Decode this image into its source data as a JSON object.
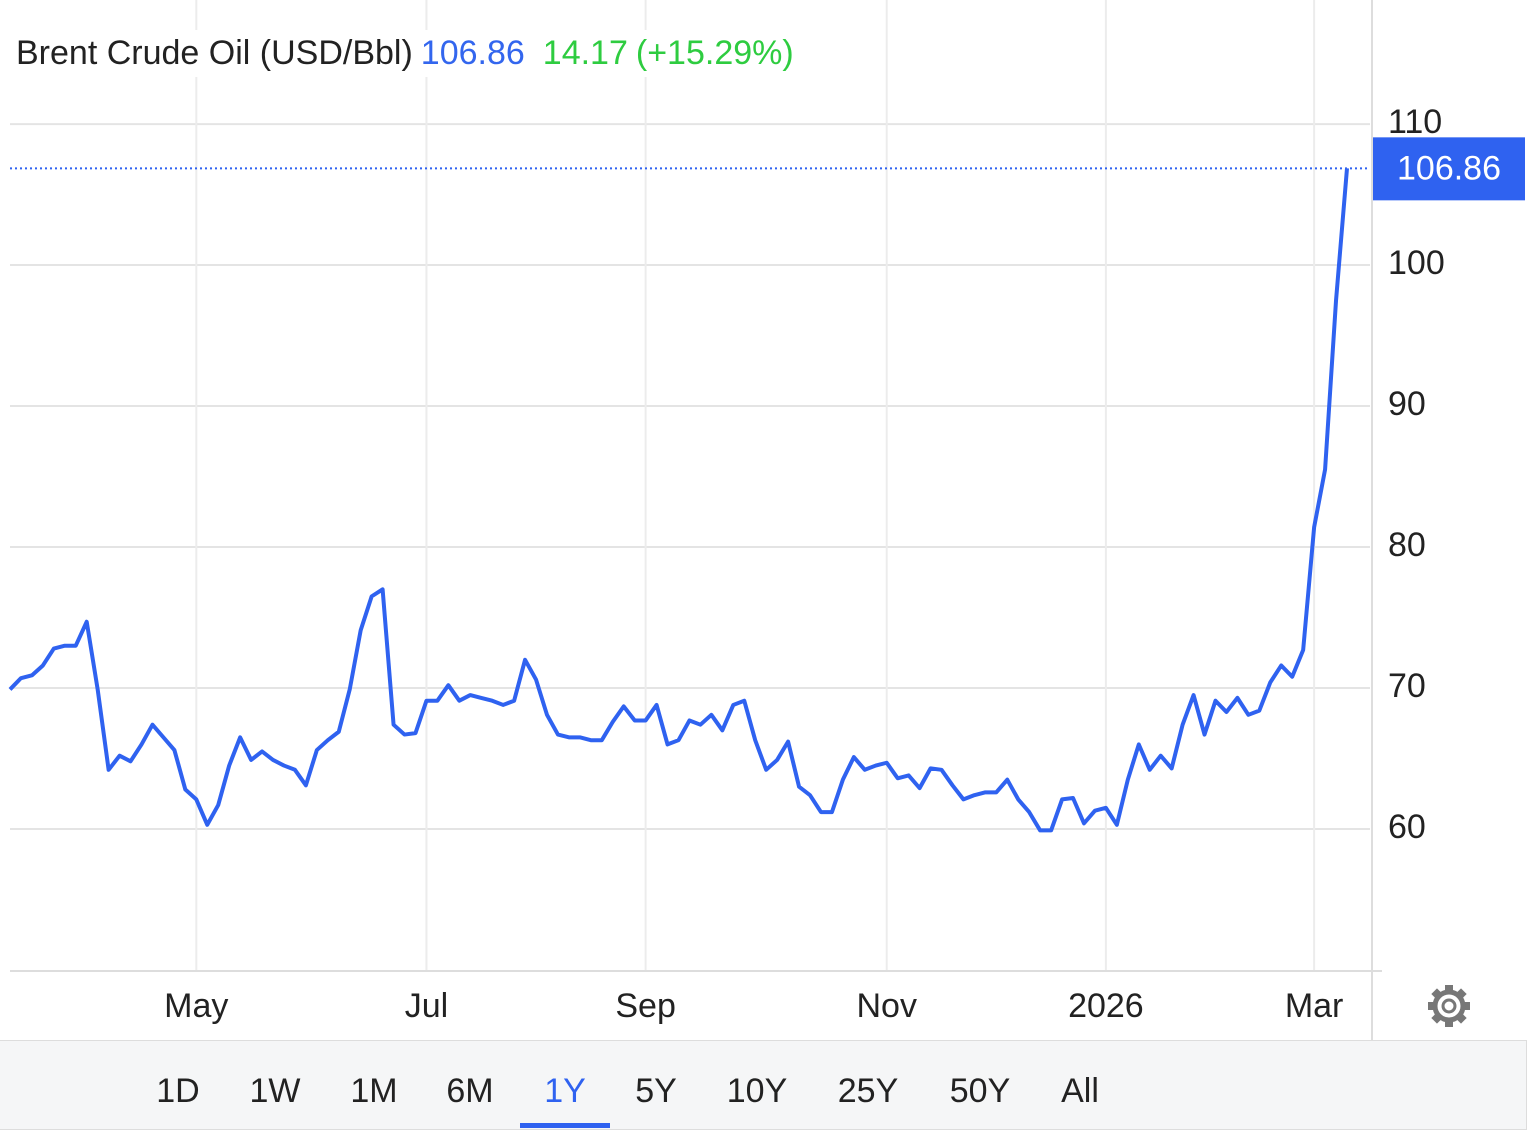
{
  "chart_data": {
    "type": "line",
    "header": {
      "title": "Brent Crude Oil (USD/Bbl)",
      "change": 14.17,
      "change_percent": "(+15.29%)"
    },
    "categories": [
      null,
      null,
      null,
      null,
      null,
      null,
      null,
      null,
      null,
      null,
      null,
      null,
      null,
      null,
      null,
      null,
      null,
      "May",
      null,
      null,
      null,
      null,
      null,
      null,
      null,
      null,
      null,
      null,
      null,
      null,
      null,
      null,
      null,
      null,
      null,
      null,
      null,
      null,
      "Jul",
      null,
      null,
      null,
      null,
      null,
      null,
      null,
      null,
      null,
      null,
      null,
      null,
      null,
      null,
      null,
      null,
      null,
      null,
      null,
      "Sep",
      null,
      null,
      null,
      null,
      null,
      null,
      null,
      null,
      null,
      null,
      null,
      null,
      null,
      null,
      null,
      null,
      null,
      null,
      null,
      null,
      null,
      "Nov",
      null,
      null,
      null,
      null,
      null,
      null,
      null,
      null,
      null,
      null,
      null,
      null,
      null,
      null,
      null,
      null,
      null,
      null,
      null,
      "2026",
      null,
      null,
      null,
      null,
      null,
      null,
      null,
      null,
      null,
      null,
      null,
      null,
      null,
      null,
      null,
      null,
      null,
      null,
      "Mar",
      null,
      null,
      null
    ],
    "series": [
      {
        "name": "Brent Crude Oil",
        "color": "#2f62f0",
        "values": [
          69.9,
          70.7,
          70.9,
          71.6,
          72.8,
          73.0,
          73.0,
          74.7,
          69.9,
          64.2,
          65.2,
          64.8,
          66.0,
          67.4,
          66.5,
          65.6,
          62.8,
          62.1,
          60.3,
          61.7,
          64.5,
          66.5,
          64.9,
          65.5,
          64.9,
          64.5,
          64.2,
          63.1,
          65.6,
          66.3,
          66.9,
          69.9,
          74.1,
          76.5,
          77.0,
          67.4,
          66.7,
          66.8,
          69.1,
          69.1,
          70.2,
          69.1,
          69.5,
          69.3,
          69.1,
          68.8,
          69.1,
          72.0,
          70.6,
          68.1,
          66.7,
          66.5,
          66.5,
          66.3,
          66.3,
          67.6,
          68.7,
          67.7,
          67.7,
          68.8,
          66.0,
          66.3,
          67.7,
          67.4,
          68.1,
          67.0,
          68.8,
          69.1,
          66.3,
          64.2,
          64.9,
          66.2,
          63.0,
          62.4,
          61.2,
          61.2,
          63.5,
          65.1,
          64.2,
          64.5,
          64.7,
          63.6,
          63.8,
          62.9,
          64.3,
          64.2,
          63.1,
          62.1,
          62.4,
          62.6,
          62.6,
          63.5,
          62.1,
          61.2,
          59.9,
          59.9,
          62.1,
          62.2,
          60.4,
          61.3,
          61.5,
          60.3,
          63.5,
          66.0,
          64.2,
          65.2,
          64.3,
          67.4,
          69.5,
          66.7,
          69.1,
          68.3,
          69.3,
          68.1,
          68.4,
          70.4,
          71.6,
          70.8,
          72.7,
          81.4,
          85.5,
          97.5,
          106.86
        ]
      }
    ],
    "ylim": [
      50,
      118.8
    ],
    "yticks": [
      60,
      70,
      80,
      90,
      100,
      110
    ],
    "grid": true,
    "ranges": [
      "1D",
      "1W",
      "1M",
      "6M",
      "1Y",
      "5Y",
      "10Y",
      "25Y",
      "50Y",
      "All"
    ],
    "active_range": 4
  }
}
